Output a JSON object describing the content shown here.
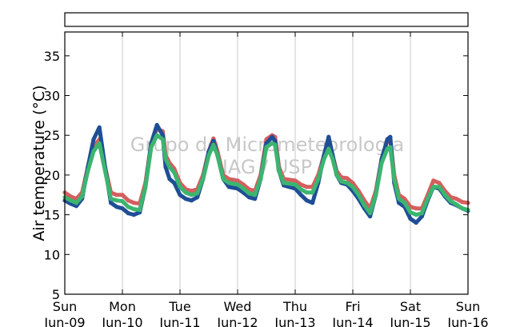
{
  "chart_data": {
    "type": "line",
    "ylabel": "Air temperature (°C)",
    "ylim": [
      5,
      38
    ],
    "yticks": [
      5,
      10,
      15,
      20,
      25,
      30,
      35
    ],
    "xlim": [
      0,
      7
    ],
    "xticks": [
      {
        "x": 0,
        "day": "Sun",
        "date": "Jun-09"
      },
      {
        "x": 1,
        "day": "Mon",
        "date": "Jun-10"
      },
      {
        "x": 2,
        "day": "Tue",
        "date": "Jun-11"
      },
      {
        "x": 3,
        "day": "Wed",
        "date": "Jun-12"
      },
      {
        "x": 4,
        "day": "Thu",
        "date": "Jun-13"
      },
      {
        "x": 5,
        "day": "Fri",
        "date": "Jun-14"
      },
      {
        "x": 6,
        "day": "Sat",
        "date": "Jun-15"
      },
      {
        "x": 7,
        "day": "Sun",
        "date": "Jun-16"
      }
    ],
    "grid": "vertical",
    "watermark": [
      "Grupo de Micrometeorologia",
      "IAG / USP"
    ],
    "series": [
      {
        "color": "#d45f5f",
        "points": [
          [
            0,
            17.8
          ],
          [
            0.1,
            17.3
          ],
          [
            0.2,
            17.0
          ],
          [
            0.3,
            17.8
          ],
          [
            0.4,
            21
          ],
          [
            0.5,
            23.5
          ],
          [
            0.6,
            24.5
          ],
          [
            0.7,
            21
          ],
          [
            0.8,
            17.8
          ],
          [
            0.9,
            17.5
          ],
          [
            1.0,
            17.5
          ],
          [
            1.1,
            16.8
          ],
          [
            1.2,
            16.5
          ],
          [
            1.3,
            16.4
          ],
          [
            1.4,
            19
          ],
          [
            1.5,
            24
          ],
          [
            1.6,
            25.8
          ],
          [
            1.7,
            25.5
          ],
          [
            1.75,
            22.5
          ],
          [
            1.82,
            21.5
          ],
          [
            1.9,
            20.8
          ],
          [
            2.0,
            19
          ],
          [
            2.1,
            18.2
          ],
          [
            2.2,
            18.0
          ],
          [
            2.3,
            18.2
          ],
          [
            2.4,
            20
          ],
          [
            2.5,
            23
          ],
          [
            2.58,
            24.6
          ],
          [
            2.65,
            23
          ],
          [
            2.75,
            20
          ],
          [
            2.85,
            19.5
          ],
          [
            3.0,
            19.3
          ],
          [
            3.1,
            18.8
          ],
          [
            3.2,
            18.2
          ],
          [
            3.3,
            18.0
          ],
          [
            3.4,
            20
          ],
          [
            3.5,
            24.5
          ],
          [
            3.6,
            25.0
          ],
          [
            3.65,
            24.8
          ],
          [
            3.72,
            21
          ],
          [
            3.8,
            19.5
          ],
          [
            4.0,
            19.3
          ],
          [
            4.1,
            18.8
          ],
          [
            4.2,
            18.5
          ],
          [
            4.3,
            18.5
          ],
          [
            4.4,
            20
          ],
          [
            4.5,
            22.5
          ],
          [
            4.58,
            24.0
          ],
          [
            4.65,
            22.5
          ],
          [
            4.72,
            20.5
          ],
          [
            4.8,
            19.7
          ],
          [
            4.9,
            19.6
          ],
          [
            5.0,
            19
          ],
          [
            5.1,
            18
          ],
          [
            5.2,
            16.8
          ],
          [
            5.3,
            15.8
          ],
          [
            5.4,
            18
          ],
          [
            5.5,
            22
          ],
          [
            5.6,
            24.3
          ],
          [
            5.65,
            24.5
          ],
          [
            5.72,
            20
          ],
          [
            5.8,
            17.5
          ],
          [
            5.9,
            17.0
          ],
          [
            6.0,
            16
          ],
          [
            6.1,
            15.8
          ],
          [
            6.2,
            15.8
          ],
          [
            6.3,
            17.5
          ],
          [
            6.4,
            19.3
          ],
          [
            6.5,
            19.0
          ],
          [
            6.6,
            18.0
          ],
          [
            6.7,
            17.2
          ],
          [
            6.8,
            17.0
          ],
          [
            6.9,
            16.6
          ],
          [
            7.0,
            16.5
          ]
        ]
      },
      {
        "color": "#1f4e96",
        "points": [
          [
            0,
            16.8
          ],
          [
            0.1,
            16.4
          ],
          [
            0.2,
            16.1
          ],
          [
            0.3,
            17.0
          ],
          [
            0.4,
            21
          ],
          [
            0.5,
            24.5
          ],
          [
            0.6,
            26.0
          ],
          [
            0.7,
            21
          ],
          [
            0.8,
            16.5
          ],
          [
            0.9,
            16.0
          ],
          [
            1.0,
            15.8
          ],
          [
            1.1,
            15.2
          ],
          [
            1.2,
            15.0
          ],
          [
            1.3,
            15.3
          ],
          [
            1.4,
            18.5
          ],
          [
            1.5,
            24
          ],
          [
            1.6,
            26.3
          ],
          [
            1.7,
            25.0
          ],
          [
            1.75,
            21
          ],
          [
            1.82,
            19.5
          ],
          [
            1.9,
            19.0
          ],
          [
            2.0,
            17.5
          ],
          [
            2.1,
            17.0
          ],
          [
            2.2,
            16.8
          ],
          [
            2.3,
            17.2
          ],
          [
            2.4,
            19.5
          ],
          [
            2.5,
            23
          ],
          [
            2.58,
            24.3
          ],
          [
            2.65,
            22.5
          ],
          [
            2.75,
            19.5
          ],
          [
            2.85,
            18.5
          ],
          [
            3.0,
            18.3
          ],
          [
            3.1,
            17.8
          ],
          [
            3.2,
            17.2
          ],
          [
            3.3,
            17.0
          ],
          [
            3.4,
            19.5
          ],
          [
            3.5,
            24
          ],
          [
            3.6,
            24.8
          ],
          [
            3.65,
            24.3
          ],
          [
            3.72,
            20.5
          ],
          [
            3.8,
            18.7
          ],
          [
            4.0,
            18.3
          ],
          [
            4.1,
            17.5
          ],
          [
            4.2,
            16.8
          ],
          [
            4.3,
            16.5
          ],
          [
            4.4,
            19
          ],
          [
            4.5,
            22.5
          ],
          [
            4.58,
            24.8
          ],
          [
            4.65,
            22.5
          ],
          [
            4.72,
            20
          ],
          [
            4.8,
            19.0
          ],
          [
            4.9,
            18.8
          ],
          [
            5.0,
            18
          ],
          [
            5.1,
            17
          ],
          [
            5.2,
            15.8
          ],
          [
            5.3,
            14.8
          ],
          [
            5.4,
            17.5
          ],
          [
            5.5,
            22
          ],
          [
            5.6,
            24.5
          ],
          [
            5.65,
            24.8
          ],
          [
            5.72,
            19
          ],
          [
            5.8,
            16.5
          ],
          [
            5.9,
            16.0
          ],
          [
            6.0,
            14.5
          ],
          [
            6.1,
            14.0
          ],
          [
            6.2,
            14.8
          ],
          [
            6.3,
            16.8
          ],
          [
            6.4,
            18.5
          ],
          [
            6.5,
            18.3
          ],
          [
            6.6,
            17.3
          ],
          [
            6.7,
            16.5
          ],
          [
            6.8,
            16.2
          ],
          [
            6.9,
            15.8
          ],
          [
            7.0,
            15.5
          ]
        ]
      },
      {
        "color": "#3bb56f",
        "points": [
          [
            0,
            17.2
          ],
          [
            0.1,
            16.8
          ],
          [
            0.2,
            16.5
          ],
          [
            0.3,
            17.3
          ],
          [
            0.4,
            20.5
          ],
          [
            0.5,
            23
          ],
          [
            0.6,
            24.0
          ],
          [
            0.7,
            20.5
          ],
          [
            0.8,
            17.0
          ],
          [
            0.9,
            16.8
          ],
          [
            1.0,
            16.7
          ],
          [
            1.1,
            16.0
          ],
          [
            1.2,
            15.7
          ],
          [
            1.3,
            15.6
          ],
          [
            1.4,
            18.5
          ],
          [
            1.5,
            23.5
          ],
          [
            1.6,
            25.0
          ],
          [
            1.7,
            24.5
          ],
          [
            1.75,
            22
          ],
          [
            1.82,
            21.0
          ],
          [
            1.9,
            20.3
          ],
          [
            2.0,
            18.5
          ],
          [
            2.1,
            17.8
          ],
          [
            2.2,
            17.5
          ],
          [
            2.3,
            17.7
          ],
          [
            2.4,
            19.5
          ],
          [
            2.5,
            22.5
          ],
          [
            2.58,
            23.8
          ],
          [
            2.65,
            22.5
          ],
          [
            2.75,
            19.5
          ],
          [
            2.85,
            19.0
          ],
          [
            3.0,
            18.8
          ],
          [
            3.1,
            18.3
          ],
          [
            3.2,
            17.7
          ],
          [
            3.3,
            17.5
          ],
          [
            3.4,
            19.5
          ],
          [
            3.5,
            23.5
          ],
          [
            3.6,
            24.0
          ],
          [
            3.65,
            23.8
          ],
          [
            3.72,
            20.5
          ],
          [
            3.8,
            19.0
          ],
          [
            4.0,
            18.8
          ],
          [
            4.1,
            18.2
          ],
          [
            4.2,
            17.8
          ],
          [
            4.3,
            17.8
          ],
          [
            4.4,
            19.5
          ],
          [
            4.5,
            22
          ],
          [
            4.58,
            23.3
          ],
          [
            4.65,
            22
          ],
          [
            4.72,
            20
          ],
          [
            4.8,
            19.2
          ],
          [
            4.9,
            19.0
          ],
          [
            5.0,
            18.5
          ],
          [
            5.1,
            17.5
          ],
          [
            5.2,
            16.2
          ],
          [
            5.3,
            15.2
          ],
          [
            5.4,
            17.5
          ],
          [
            5.5,
            21.5
          ],
          [
            5.6,
            23.3
          ],
          [
            5.65,
            23.5
          ],
          [
            5.72,
            19.5
          ],
          [
            5.8,
            17.0
          ],
          [
            5.9,
            16.5
          ],
          [
            6.0,
            15.3
          ],
          [
            6.1,
            15.0
          ],
          [
            6.2,
            15.2
          ],
          [
            6.3,
            17.0
          ],
          [
            6.4,
            18.5
          ],
          [
            6.5,
            18.5
          ],
          [
            6.6,
            17.5
          ],
          [
            6.7,
            16.7
          ],
          [
            6.8,
            16.3
          ],
          [
            6.9,
            15.8
          ],
          [
            7.0,
            15.6
          ]
        ]
      }
    ]
  }
}
